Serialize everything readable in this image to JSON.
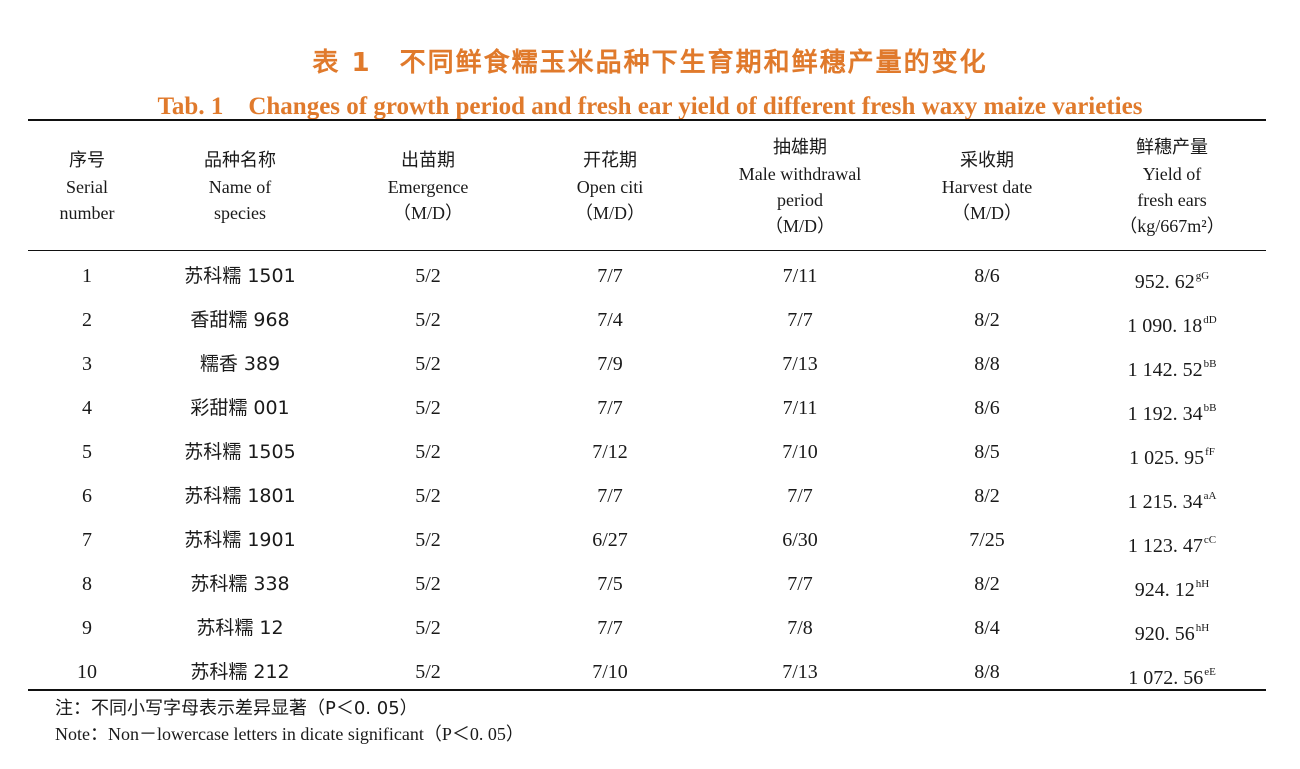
{
  "title_cn": "表 1　不同鲜食糯玉米品种下生育期和鲜穗产量的变化",
  "title_en": "Tab. 1　Changes of growth period and fresh ear yield of different fresh waxy maize varieties",
  "headers": [
    {
      "lines": [
        "序号",
        "Serial",
        "number"
      ]
    },
    {
      "lines": [
        "品种名称",
        "Name of",
        "species"
      ]
    },
    {
      "lines": [
        "出苗期",
        "Emergence",
        "（M/D）"
      ]
    },
    {
      "lines": [
        "开花期",
        "Open citi",
        "（M/D）"
      ]
    },
    {
      "lines": [
        "抽雄期",
        "Male withdrawal",
        "period",
        "（M/D）"
      ]
    },
    {
      "lines": [
        "采收期",
        "Harvest date",
        "（M/D）"
      ]
    },
    {
      "lines": [
        "鲜穗产量",
        "Yield of",
        "fresh ears",
        "（kg/667m²）"
      ]
    }
  ],
  "rows": [
    {
      "serial": "1",
      "name": "苏科糯 1501",
      "emergence": "5/2",
      "flowering": "7/7",
      "tasseling": "7/11",
      "harvest": "8/6",
      "yield": "952. 62",
      "sig": "gG"
    },
    {
      "serial": "2",
      "name": "香甜糯 968",
      "emergence": "5/2",
      "flowering": "7/4",
      "tasseling": "7/7",
      "harvest": "8/2",
      "yield": "1 090. 18",
      "sig": "dD"
    },
    {
      "serial": "3",
      "name": "糯香 389",
      "emergence": "5/2",
      "flowering": "7/9",
      "tasseling": "7/13",
      "harvest": "8/8",
      "yield": "1 142. 52",
      "sig": "bB"
    },
    {
      "serial": "4",
      "name": "彩甜糯 001",
      "emergence": "5/2",
      "flowering": "7/7",
      "tasseling": "7/11",
      "harvest": "8/6",
      "yield": "1 192. 34",
      "sig": "bB"
    },
    {
      "serial": "5",
      "name": "苏科糯 1505",
      "emergence": "5/2",
      "flowering": "7/12",
      "tasseling": "7/10",
      "harvest": "8/5",
      "yield": "1 025. 95",
      "sig": "fF"
    },
    {
      "serial": "6",
      "name": "苏科糯 1801",
      "emergence": "5/2",
      "flowering": "7/7",
      "tasseling": "7/7",
      "harvest": "8/2",
      "yield": "1 215. 34",
      "sig": "aA"
    },
    {
      "serial": "7",
      "name": "苏科糯 1901",
      "emergence": "5/2",
      "flowering": "6/27",
      "tasseling": "6/30",
      "harvest": "7/25",
      "yield": "1 123. 47",
      "sig": "cC"
    },
    {
      "serial": "8",
      "name": "苏科糯 338",
      "emergence": "5/2",
      "flowering": "7/5",
      "tasseling": "7/7",
      "harvest": "8/2",
      "yield": "924. 12",
      "sig": "hH"
    },
    {
      "serial": "9",
      "name": "苏科糯 12",
      "emergence": "5/2",
      "flowering": "7/7",
      "tasseling": "7/8",
      "harvest": "8/4",
      "yield": "920. 56",
      "sig": "hH"
    },
    {
      "serial": "10",
      "name": "苏科糯 212",
      "emergence": "5/2",
      "flowering": "7/10",
      "tasseling": "7/13",
      "harvest": "8/8",
      "yield": "1 072. 56",
      "sig": "eE"
    }
  ],
  "note_cn": "注：不同小写字母表示差异显著（P＜0. 05）",
  "note_en": "Note：Non－lowercase letters in dicate significant（P＜0. 05）"
}
